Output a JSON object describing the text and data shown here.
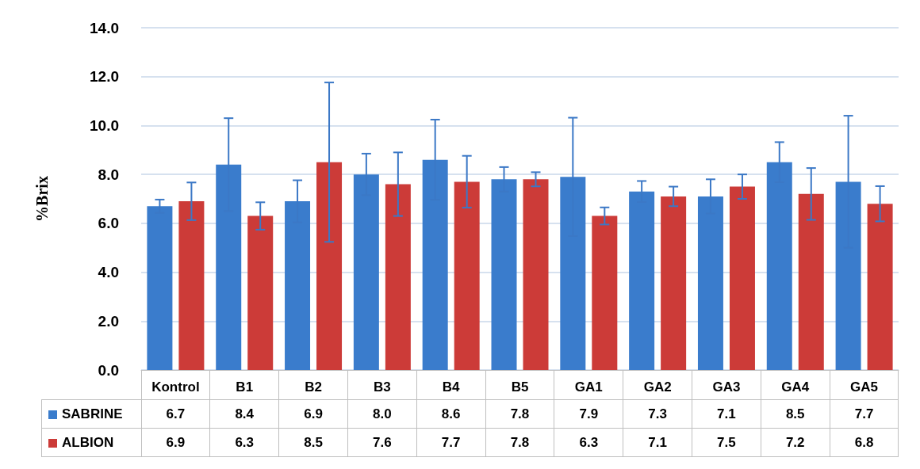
{
  "chart_data": {
    "type": "bar",
    "ylabel": "%Brix",
    "categories": [
      "Kontrol",
      "B1",
      "B2",
      "B3",
      "B4",
      "B5",
      "GA1",
      "GA2",
      "GA3",
      "GA4",
      "GA5"
    ],
    "series": [
      {
        "name": "SABRINE",
        "color": "#3a7ccc",
        "values": [
          6.7,
          8.4,
          6.9,
          8.0,
          8.6,
          7.8,
          7.9,
          7.3,
          7.1,
          8.5,
          7.7
        ],
        "value_labels": [
          "6.7",
          "8.4",
          "6.9",
          "8.0",
          "8.6",
          "7.8",
          "7.9",
          "7.3",
          "7.1",
          "8.5",
          "7.7"
        ],
        "errors": [
          0.27,
          1.9,
          0.86,
          0.85,
          1.64,
          0.5,
          2.42,
          0.43,
          0.7,
          0.82,
          2.7
        ]
      },
      {
        "name": "ALBION",
        "color": "#cc3b38",
        "values": [
          6.9,
          6.3,
          8.5,
          7.6,
          7.7,
          7.8,
          6.3,
          7.1,
          7.5,
          7.2,
          6.8
        ],
        "value_labels": [
          "6.9",
          "6.3",
          "8.5",
          "7.6",
          "7.7",
          "7.8",
          "6.3",
          "7.1",
          "7.5",
          "7.2",
          "6.8"
        ],
        "errors": [
          0.77,
          0.56,
          3.26,
          1.3,
          1.06,
          0.29,
          0.35,
          0.4,
          0.5,
          1.06,
          0.72
        ]
      }
    ],
    "ylim": [
      0,
      14
    ],
    "yticks": [
      {
        "value": 0,
        "label": "0.0"
      },
      {
        "value": 2,
        "label": "2.0"
      },
      {
        "value": 4,
        "label": "4.0"
      },
      {
        "value": 6,
        "label": "6.0"
      },
      {
        "value": 8,
        "label": "8.0"
      },
      {
        "value": 10,
        "label": "10.0"
      },
      {
        "value": 12,
        "label": "12.0"
      },
      {
        "value": 14,
        "label": "14.0"
      }
    ],
    "grid": "y",
    "legend": "bottom"
  }
}
